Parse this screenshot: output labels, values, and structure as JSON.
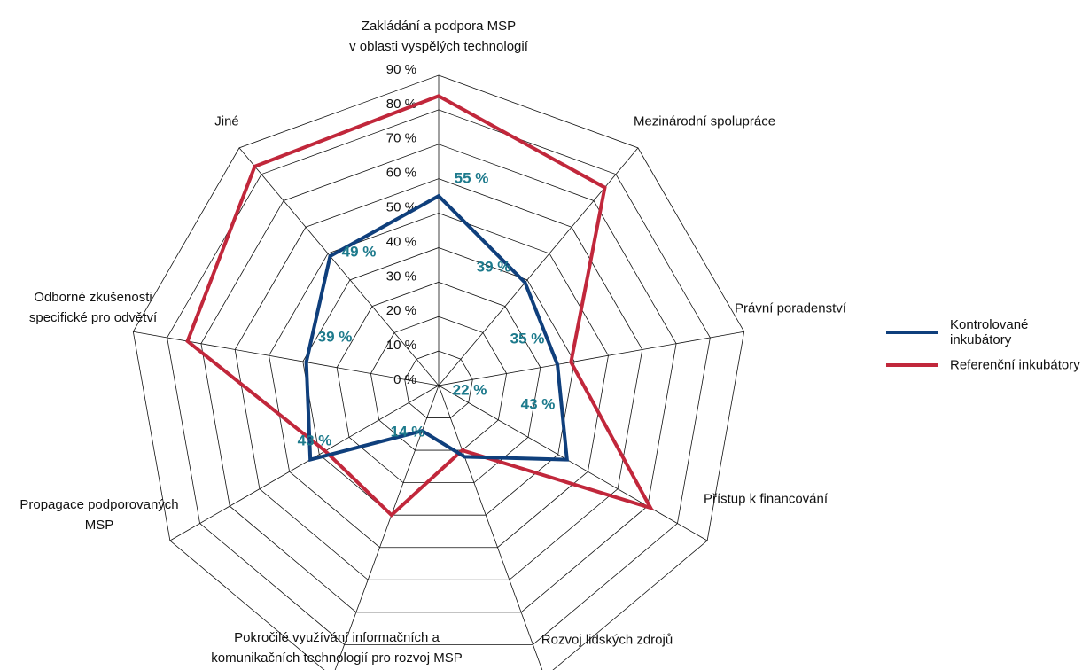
{
  "chart_data": {
    "type": "radar",
    "categories": [
      "Zakládání a podpora MSP\nv oblasti vyspělých technologií",
      "Mezinárodní spolupráce",
      "Právní poradenství",
      "Přístup k financování",
      "Rozvoj lidských zdrojů",
      "Pokročilé využívání informačních a\nkomunikačních technologií pro rozvoj MSP",
      "Propagace podporovaných\nMSP",
      "Odborné zkušenosti\nspecifické pro odvětví",
      "Jiné"
    ],
    "series": [
      {
        "name": "Kontrolované inkubátory",
        "color": "#0f3f7c",
        "values": [
          55,
          39,
          35,
          43,
          22,
          14,
          43,
          39,
          49
        ],
        "value_labels": [
          "55 %",
          "39 %",
          "35 %",
          "43 %",
          "22 %",
          "14 %",
          "43 %",
          "39 %",
          "49 %"
        ]
      },
      {
        "name": "Referenční inkubátory",
        "color": "#c1273b",
        "values": [
          84,
          75,
          39,
          71,
          20,
          40,
          38,
          74,
          83
        ]
      }
    ],
    "ylim": [
      0,
      90
    ],
    "yticks": [
      {
        "value": 0,
        "label": "0 %"
      },
      {
        "value": 10,
        "label": "10 %"
      },
      {
        "value": 20,
        "label": "20 %"
      },
      {
        "value": 30,
        "label": "30 %"
      },
      {
        "value": 40,
        "label": "40 %"
      },
      {
        "value": 50,
        "label": "50 %"
      },
      {
        "value": 60,
        "label": "60 %"
      },
      {
        "value": 70,
        "label": "70 %"
      },
      {
        "value": 80,
        "label": "80 %"
      },
      {
        "value": 90,
        "label": "90 %"
      }
    ],
    "grid": true,
    "legend": "right",
    "value_label_color": "#1d7a8c"
  }
}
